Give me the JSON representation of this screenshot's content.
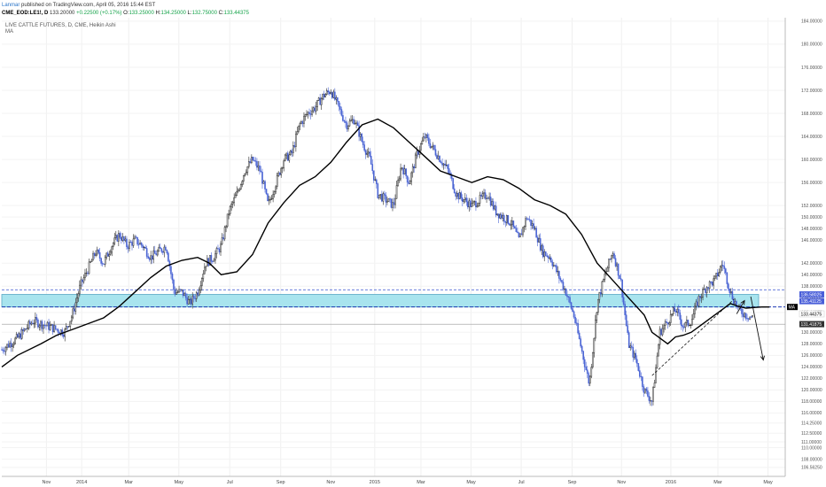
{
  "header": {
    "author": "Lanmar",
    "published": "published on TradingView.com, April 05, 2016 15:44 EST",
    "symbol": "CME_EOD:LE1!, D",
    "last": "133.20000",
    "change": "+0.22500 (+0.17%)",
    "o_label": "O:",
    "o_value": "133.25000",
    "h_label": "H:",
    "h_value": "134.25000",
    "l_label": "L:",
    "l_value": "132.75000",
    "c_label": "C:",
    "c_value": "133.44375"
  },
  "chart_title": "LIVE CATTLE FUTURES, D, CME, Heikin Ashi",
  "ma_label": "MA",
  "chart_data": {
    "type": "line",
    "chart_style": "Heikin Ashi candlesticks with moving average",
    "ylim": [
      105.0,
      184.6
    ],
    "y_ticks": [
      "184.00000",
      "180.00000",
      "176.00000",
      "172.00000",
      "168.00000",
      "164.00000",
      "160.00000",
      "156.00000",
      "152.00000",
      "150.00000",
      "148.00000",
      "146.00000",
      "142.00000",
      "140.00000",
      "138.00000",
      "136.00000",
      "133.44375",
      "130.00000",
      "128.00000",
      "126.00000",
      "124.00000",
      "122.00000",
      "120.00000",
      "118.00000",
      "116.00000",
      "114.25000",
      "112.50000",
      "111.00000",
      "110.00000",
      "108.00000",
      "106.56250"
    ],
    "x_ticks": [
      "Nov",
      "2014",
      "Mar",
      "May",
      "Jul",
      "Sep",
      "Nov",
      "2015",
      "Mar",
      "May",
      "Jul",
      "Sep",
      "Nov",
      "2016",
      "Mar",
      "May"
    ],
    "price_tags": [
      {
        "value": "136.58025",
        "color": "#4a5fd9"
      },
      {
        "value": "135.41125",
        "color": "#4a5fd9"
      },
      {
        "value": "MA",
        "color": "#000000"
      },
      {
        "value": "133.44375",
        "color": "#ffffff"
      },
      {
        "value": "131.41875",
        "color": "#333333"
      }
    ],
    "zone": {
      "upper": 136.58,
      "lower": 134.4,
      "color": "#a8e4ee"
    },
    "horizontal_lines": [
      {
        "value": 134.4,
        "style": "dashed",
        "color": "#1e3ab4"
      },
      {
        "value": 131.4,
        "style": "solid",
        "color": "#999999"
      }
    ],
    "series": [
      {
        "name": "MA",
        "color": "#000000",
        "x": [
          0,
          2,
          5,
          7,
          9,
          11,
          13,
          15,
          17,
          19,
          21,
          23,
          25,
          26.5,
          28,
          30,
          32,
          34,
          36,
          38,
          40,
          42,
          44,
          46,
          48,
          50,
          52,
          54,
          56,
          58,
          60,
          62,
          64,
          66,
          68,
          70,
          72,
          74,
          76,
          78,
          80,
          82,
          83,
          85,
          86,
          87,
          88,
          89,
          90,
          91,
          92,
          93,
          94,
          95,
          96,
          97,
          98
        ],
        "values": [
          124,
          126,
          128,
          129.5,
          130.5,
          131.5,
          132.5,
          134.5,
          137,
          139.5,
          141.5,
          142.5,
          143,
          142,
          140,
          140.5,
          143.5,
          149,
          152.5,
          155.5,
          157,
          159.5,
          163,
          166,
          167,
          165.5,
          163,
          160.5,
          158,
          157,
          156,
          157,
          156.5,
          155,
          153,
          152,
          150.5,
          147,
          142,
          139,
          136,
          133,
          130,
          128,
          129.2,
          129.5,
          130,
          131,
          132,
          133,
          134,
          135,
          134.5,
          134.2,
          134.3,
          134.4,
          134.4
        ]
      },
      {
        "name": "price",
        "color": "#222222",
        "x": [
          0,
          2,
          4,
          6,
          8,
          9,
          10,
          11,
          12,
          13,
          14,
          15,
          16,
          17,
          18,
          19,
          20,
          21,
          22,
          23,
          24,
          25,
          26,
          27,
          28,
          29,
          30,
          31,
          32,
          33,
          34,
          35,
          36,
          37,
          38,
          39,
          40,
          41,
          42,
          43,
          44,
          45,
          46,
          47,
          48,
          49,
          50,
          51,
          52,
          53,
          54,
          55,
          56,
          57,
          58,
          59,
          60,
          61,
          62,
          63,
          64,
          65,
          66,
          67,
          68,
          69,
          70,
          71,
          72,
          73,
          74,
          75,
          76,
          77,
          78,
          79,
          80,
          81,
          82,
          83,
          84,
          85,
          86,
          87,
          88,
          89,
          90,
          91,
          92,
          93,
          94,
          95,
          96
        ],
        "values": [
          127,
          129,
          132,
          131,
          130,
          133,
          138,
          141,
          144,
          142,
          145,
          147,
          145,
          146,
          145,
          143,
          144,
          145,
          137,
          137,
          135,
          137,
          142,
          143,
          145,
          151,
          154,
          158,
          160,
          158,
          152,
          156,
          160,
          161,
          166,
          168,
          169,
          171,
          172,
          169,
          166,
          167,
          163,
          160,
          154,
          153,
          152,
          159,
          156,
          161,
          164,
          162,
          160,
          158,
          154,
          153,
          152,
          153,
          154,
          151,
          150,
          149,
          146,
          150,
          148,
          144,
          143,
          140,
          137,
          133,
          127,
          121,
          135,
          140,
          144,
          139,
          128,
          125,
          120,
          118,
          130,
          132,
          134,
          131,
          132,
          136,
          138,
          139,
          142,
          137,
          134,
          133,
          132.5
        ]
      }
    ],
    "annotations": [
      {
        "type": "dashed-trendline",
        "from": [
          83,
          122.5
        ],
        "to": [
          93.5,
          135.8
        ]
      },
      {
        "type": "arrow",
        "description": "up into zone",
        "from": [
          93.8,
          133.2
        ],
        "to": [
          94.8,
          135.5
        ]
      },
      {
        "type": "arrow",
        "description": "down projection",
        "from": [
          95.6,
          136.2
        ],
        "to": [
          97.2,
          125.2
        ]
      }
    ]
  }
}
